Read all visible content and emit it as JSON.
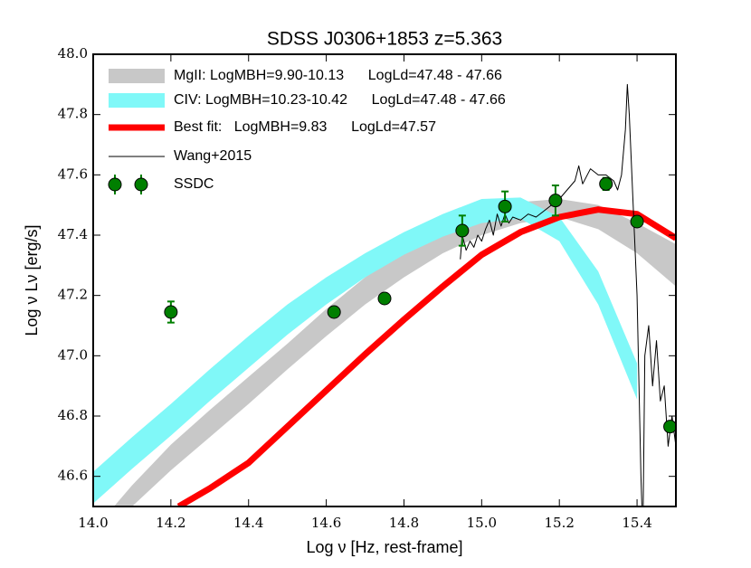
{
  "chart_data": {
    "type": "line",
    "title": "SDSS J0306+1853 z=5.363",
    "xlabel": "Log ν [Hz, rest-frame]",
    "ylabel": "Log ν Lν [erg/s]",
    "xlim": [
      14.0,
      15.5
    ],
    "ylim": [
      46.5,
      48.0
    ],
    "xticks": [
      {
        "value": 14.0,
        "label": "14.0"
      },
      14.2,
      14.4,
      14.6,
      14.8,
      {
        "value": 15.0,
        "label": "15.0"
      },
      15.2,
      15.4
    ],
    "yticks": [
      46.6,
      46.8,
      {
        "value": 47.0,
        "label": "47.0"
      },
      47.2,
      47.4,
      47.6,
      47.8,
      {
        "value": 48.0,
        "label": "48.0"
      }
    ],
    "legend": "upper left",
    "series": [
      {
        "name": "MgII: LogMBH=9.90-10.13      LogLd=47.48 - 47.66",
        "type": "band",
        "color": "#c8c8c8",
        "x": [
          14.0,
          14.1,
          14.2,
          14.3,
          14.4,
          14.5,
          14.6,
          14.7,
          14.8,
          14.9,
          15.0,
          15.1,
          15.2,
          15.3,
          15.4,
          15.5
        ],
        "upper": [
          46.42,
          46.57,
          46.705,
          46.82,
          46.93,
          47.04,
          47.155,
          47.26,
          47.35,
          47.42,
          47.47,
          47.51,
          47.52,
          47.5,
          47.44,
          47.37
        ],
        "lower": [
          46.38,
          46.5,
          46.62,
          46.73,
          46.84,
          46.955,
          47.065,
          47.17,
          47.26,
          47.34,
          47.4,
          47.44,
          47.46,
          47.42,
          47.34,
          47.23
        ]
      },
      {
        "name": "CIV: LogMBH=10.23-10.42      LogLd=47.48 - 47.66",
        "type": "band",
        "color": "#80f8f8",
        "x": [
          14.0,
          14.1,
          14.2,
          14.3,
          14.4,
          14.5,
          14.6,
          14.7,
          14.8,
          14.9,
          15.0,
          15.1,
          15.2,
          15.3,
          15.4
        ],
        "upper": [
          46.615,
          46.73,
          46.84,
          46.955,
          47.065,
          47.17,
          47.26,
          47.34,
          47.41,
          47.47,
          47.52,
          47.525,
          47.46,
          47.28,
          46.975
        ],
        "lower": [
          46.51,
          46.625,
          46.735,
          46.85,
          46.96,
          47.07,
          47.17,
          47.26,
          47.335,
          47.395,
          47.44,
          47.455,
          47.38,
          47.17,
          46.855
        ]
      },
      {
        "name": "Best fit:   LogMBH=9.83      LogLd=47.57",
        "type": "line",
        "color": "#ff0000",
        "width": 7,
        "x": [
          14.22,
          14.3,
          14.4,
          14.5,
          14.6,
          14.7,
          14.8,
          14.9,
          15.0,
          15.1,
          15.2,
          15.3,
          15.4,
          15.5
        ],
        "values": [
          46.5,
          46.56,
          46.645,
          46.765,
          46.885,
          47.005,
          47.12,
          47.23,
          47.335,
          47.41,
          47.46,
          47.485,
          47.47,
          47.39
        ]
      },
      {
        "name": "Wang+2015",
        "type": "line",
        "color": "#000000",
        "width": 1,
        "x": [
          14.945,
          14.95,
          14.96,
          14.97,
          14.98,
          14.99,
          15.0,
          15.01,
          15.02,
          15.03,
          15.04,
          15.05,
          15.06,
          15.07,
          15.08,
          15.1,
          15.12,
          15.14,
          15.16,
          15.18,
          15.2,
          15.22,
          15.24,
          15.25,
          15.26,
          15.28,
          15.3,
          15.32,
          15.34,
          15.35,
          15.36,
          15.37,
          15.375,
          15.38,
          15.39,
          15.4,
          15.405,
          15.41,
          15.415,
          15.42,
          15.43,
          15.44,
          15.45,
          15.46,
          15.47,
          15.48,
          15.49,
          15.5
        ],
        "values": [
          47.32,
          47.4,
          47.35,
          47.38,
          47.36,
          47.4,
          47.38,
          47.42,
          47.45,
          47.4,
          47.47,
          47.43,
          47.47,
          47.44,
          47.46,
          47.45,
          47.47,
          47.46,
          47.48,
          47.5,
          47.52,
          47.55,
          47.58,
          47.63,
          47.57,
          47.62,
          47.6,
          47.6,
          47.58,
          47.55,
          47.6,
          47.75,
          47.9,
          47.8,
          47.5,
          47.2,
          46.9,
          46.6,
          46.4,
          47.0,
          47.1,
          46.9,
          47.05,
          46.85,
          46.9,
          46.7,
          46.8,
          46.7
        ]
      },
      {
        "name": "SSDC",
        "type": "scatter",
        "color": "#007f00",
        "x": [
          14.2,
          14.62,
          14.75,
          14.95,
          15.06,
          15.19,
          15.32,
          15.4,
          15.485
        ],
        "values": [
          47.145,
          47.145,
          47.19,
          47.415,
          47.495,
          47.515,
          47.57,
          47.445,
          46.765
        ],
        "errors": [
          0.035,
          0.0,
          0.0,
          0.05,
          0.05,
          0.05,
          0.02,
          0.0,
          0.0
        ]
      }
    ]
  }
}
